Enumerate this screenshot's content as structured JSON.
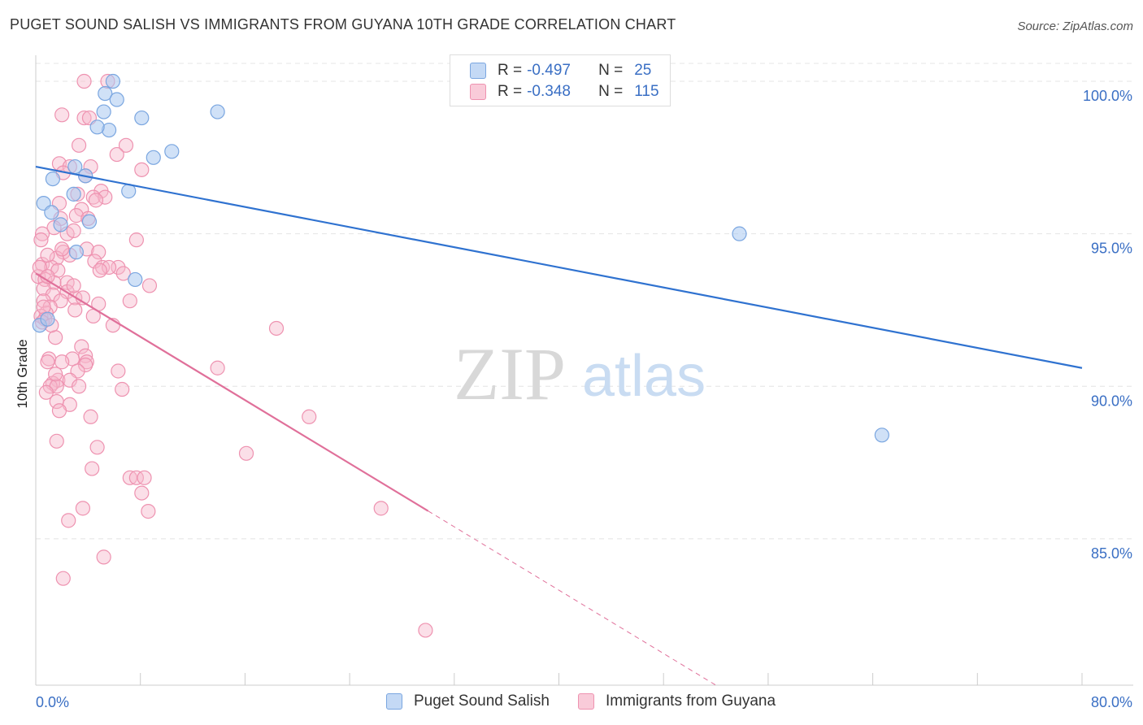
{
  "title": "PUGET SOUND SALISH VS IMMIGRANTS FROM GUYANA 10TH GRADE CORRELATION CHART",
  "source": "Source: ZipAtlas.com",
  "watermark": {
    "zip": "ZIP",
    "atlas": "atlas"
  },
  "legend": {
    "rows": [
      {
        "r_label": "R =",
        "r_value": "-0.497",
        "n_label": "N =",
        "n_value": "25"
      },
      {
        "r_label": "R =",
        "r_value": "-0.348",
        "n_label": "N =",
        "n_value": "115"
      }
    ]
  },
  "bottom_legend": {
    "series1": "Puget Sound Salish",
    "series2": "Immigrants from Guyana"
  },
  "colors": {
    "blue_fill": "#aac8f0",
    "blue_stroke": "#7aa6e0",
    "blue_line": "#2f72d0",
    "pink_fill": "#f7b8cc",
    "pink_stroke": "#ee92b0",
    "pink_line": "#e0709a",
    "grid": "#e4e4e4",
    "tick_label": "#3a6fc4"
  },
  "chart_data": {
    "type": "scatter",
    "title": "PUGET SOUND SALISH VS IMMIGRANTS FROM GUYANA 10TH GRADE CORRELATION CHART",
    "xlabel": "",
    "ylabel": "10th Grade",
    "xlim": [
      0,
      80
    ],
    "ylim": [
      80.2,
      100.8
    ],
    "x_tick_labels": [
      {
        "value": 0,
        "label": "0.0%"
      },
      {
        "value": 80,
        "label": "80.0%"
      }
    ],
    "y_ticks": [
      {
        "value": 100,
        "label": "100.0%"
      },
      {
        "value": 95,
        "label": "95.0%"
      },
      {
        "value": 90,
        "label": "90.0%"
      },
      {
        "value": 85,
        "label": "85.0%"
      }
    ],
    "grid": true,
    "legend_position": "top-center",
    "series": [
      {
        "name": "Puget Sound Salish",
        "r": -0.497,
        "n": 25,
        "trend": {
          "x": [
            0,
            80
          ],
          "y": [
            97.2,
            90.6
          ],
          "solid_until": 80
        },
        "points": [
          [
            5.9,
            100.0
          ],
          [
            5.3,
            99.6
          ],
          [
            6.2,
            99.4
          ],
          [
            5.2,
            99.0
          ],
          [
            8.1,
            98.8
          ],
          [
            13.9,
            99.0
          ],
          [
            5.6,
            98.4
          ],
          [
            4.7,
            98.5
          ],
          [
            10.4,
            97.7
          ],
          [
            9.0,
            97.5
          ],
          [
            3.0,
            97.2
          ],
          [
            3.8,
            96.9
          ],
          [
            1.3,
            96.8
          ],
          [
            7.1,
            96.4
          ],
          [
            2.9,
            96.3
          ],
          [
            0.6,
            96.0
          ],
          [
            1.2,
            95.7
          ],
          [
            1.9,
            95.3
          ],
          [
            4.1,
            95.4
          ],
          [
            3.1,
            94.4
          ],
          [
            7.6,
            93.5
          ],
          [
            53.8,
            95.0
          ],
          [
            64.7,
            88.4
          ],
          [
            0.3,
            92.0
          ],
          [
            0.9,
            92.2
          ]
        ]
      },
      {
        "name": "Immigrants from Guyana",
        "r": -0.348,
        "n": 115,
        "trend": {
          "x": [
            0,
            52.0
          ],
          "y": [
            93.7,
            80.2
          ],
          "solid_until": 30.0
        },
        "points": [
          [
            3.7,
            100.0
          ],
          [
            5.5,
            100.0
          ],
          [
            3.7,
            98.8
          ],
          [
            2.0,
            98.9
          ],
          [
            4.1,
            98.8
          ],
          [
            3.3,
            97.9
          ],
          [
            6.9,
            97.9
          ],
          [
            6.2,
            97.6
          ],
          [
            1.8,
            97.3
          ],
          [
            2.6,
            97.2
          ],
          [
            4.2,
            97.2
          ],
          [
            8.1,
            97.1
          ],
          [
            2.1,
            97.0
          ],
          [
            3.8,
            96.9
          ],
          [
            5.0,
            96.4
          ],
          [
            4.4,
            96.2
          ],
          [
            5.3,
            96.2
          ],
          [
            1.8,
            96.0
          ],
          [
            4.6,
            96.1
          ],
          [
            3.5,
            95.8
          ],
          [
            3.1,
            95.6
          ],
          [
            1.9,
            95.5
          ],
          [
            1.4,
            95.2
          ],
          [
            2.4,
            95.0
          ],
          [
            2.9,
            95.1
          ],
          [
            0.5,
            95.0
          ],
          [
            0.4,
            94.8
          ],
          [
            7.7,
            94.8
          ],
          [
            2.1,
            94.4
          ],
          [
            3.9,
            94.5
          ],
          [
            4.8,
            94.4
          ],
          [
            1.6,
            94.2
          ],
          [
            2.6,
            94.3
          ],
          [
            0.5,
            94.0
          ],
          [
            1.2,
            93.9
          ],
          [
            1.7,
            93.8
          ],
          [
            4.5,
            94.1
          ],
          [
            5.1,
            93.9
          ],
          [
            6.3,
            93.9
          ],
          [
            5.6,
            93.9
          ],
          [
            4.9,
            93.8
          ],
          [
            6.7,
            93.7
          ],
          [
            0.2,
            93.6
          ],
          [
            0.7,
            93.5
          ],
          [
            1.4,
            93.4
          ],
          [
            2.4,
            93.4
          ],
          [
            8.7,
            93.3
          ],
          [
            0.6,
            93.2
          ],
          [
            1.3,
            93.0
          ],
          [
            2.4,
            93.1
          ],
          [
            3.0,
            92.9
          ],
          [
            3.6,
            92.9
          ],
          [
            0.6,
            92.8
          ],
          [
            1.9,
            92.8
          ],
          [
            7.2,
            92.8
          ],
          [
            4.8,
            92.7
          ],
          [
            1.1,
            92.6
          ],
          [
            3.0,
            92.5
          ],
          [
            0.8,
            92.4
          ],
          [
            0.4,
            92.3
          ],
          [
            0.7,
            92.2
          ],
          [
            4.4,
            92.3
          ],
          [
            0.5,
            92.1
          ],
          [
            5.9,
            92.0
          ],
          [
            18.4,
            91.9
          ],
          [
            1.5,
            91.6
          ],
          [
            3.5,
            91.3
          ],
          [
            3.8,
            91.0
          ],
          [
            1.0,
            90.9
          ],
          [
            2.8,
            90.9
          ],
          [
            3.9,
            90.8
          ],
          [
            0.9,
            90.8
          ],
          [
            2.0,
            90.8
          ],
          [
            3.8,
            90.7
          ],
          [
            13.9,
            90.6
          ],
          [
            3.2,
            90.5
          ],
          [
            6.3,
            90.5
          ],
          [
            1.7,
            90.2
          ],
          [
            1.3,
            90.1
          ],
          [
            1.1,
            90.0
          ],
          [
            1.6,
            90.0
          ],
          [
            0.8,
            89.8
          ],
          [
            6.6,
            89.9
          ],
          [
            1.6,
            89.5
          ],
          [
            2.6,
            89.4
          ],
          [
            1.8,
            89.2
          ],
          [
            4.2,
            89.0
          ],
          [
            20.9,
            89.0
          ],
          [
            1.6,
            88.2
          ],
          [
            4.7,
            88.0
          ],
          [
            16.1,
            87.8
          ],
          [
            4.3,
            87.3
          ],
          [
            7.2,
            87.0
          ],
          [
            7.7,
            87.0
          ],
          [
            8.3,
            87.0
          ],
          [
            8.1,
            86.5
          ],
          [
            3.6,
            86.0
          ],
          [
            8.6,
            85.9
          ],
          [
            26.4,
            86.0
          ],
          [
            2.5,
            85.6
          ],
          [
            5.2,
            84.4
          ],
          [
            2.1,
            83.7
          ],
          [
            29.8,
            82.0
          ],
          [
            0.3,
            93.9
          ],
          [
            0.9,
            93.6
          ],
          [
            2.6,
            90.2
          ],
          [
            3.3,
            90.0
          ],
          [
            1.2,
            92.0
          ],
          [
            0.6,
            92.6
          ],
          [
            2.0,
            94.5
          ],
          [
            4.0,
            95.5
          ],
          [
            3.2,
            96.3
          ],
          [
            2.9,
            93.3
          ],
          [
            1.5,
            90.4
          ],
          [
            0.9,
            94.3
          ]
        ]
      }
    ]
  }
}
